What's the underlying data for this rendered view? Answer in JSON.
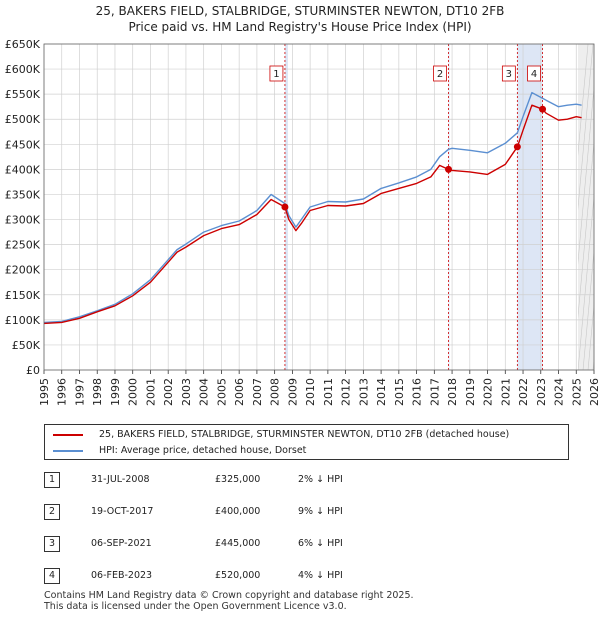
{
  "header": {
    "title_line1": "25, BAKERS FIELD, STALBRIDGE, STURMINSTER NEWTON, DT10 2FB",
    "title_line2": "Price paid vs. HM Land Registry's House Price Index (HPI)"
  },
  "colors": {
    "price_paid": "#cc0000",
    "hpi": "#5b8fd1",
    "shade": "#dde6f5",
    "marker_line": "#cc0000",
    "grid": "#d0d0d0"
  },
  "chart_data": {
    "type": "line",
    "x_range": [
      1995,
      2026
    ],
    "ylim": [
      0,
      650000
    ],
    "y_ticks": [
      0,
      50000,
      100000,
      150000,
      200000,
      250000,
      300000,
      350000,
      400000,
      450000,
      500000,
      550000,
      600000,
      650000
    ],
    "y_tick_labels": [
      "£0",
      "£50K",
      "£100K",
      "£150K",
      "£200K",
      "£250K",
      "£300K",
      "£350K",
      "£400K",
      "£450K",
      "£500K",
      "£550K",
      "£600K",
      "£650K"
    ],
    "x_ticks": [
      1995,
      1996,
      1997,
      1998,
      1999,
      2000,
      2001,
      2002,
      2003,
      2004,
      2005,
      2006,
      2007,
      2008,
      2009,
      2010,
      2011,
      2012,
      2013,
      2014,
      2015,
      2016,
      2017,
      2018,
      2019,
      2020,
      2021,
      2022,
      2023,
      2024,
      2025,
      2026
    ],
    "x_tick_labels": [
      "1995",
      "1996",
      "1997",
      "1998",
      "1999",
      "2000",
      "2001",
      "2002",
      "2003",
      "2004",
      "2005",
      "2006",
      "2007",
      "2008",
      "2009",
      "2010",
      "2011",
      "2012",
      "2013",
      "2014",
      "2015",
      "2016",
      "2017",
      "2018",
      "2019",
      "2020",
      "2021",
      "2022",
      "2023",
      "2024",
      "2025",
      "2026"
    ],
    "shaded_periods": [
      [
        2008.58,
        2008.75
      ],
      [
        2017.8,
        2017.85
      ],
      [
        2021.68,
        2023.1
      ]
    ],
    "projection_from": 2025.1,
    "series": [
      {
        "name": "25, BAKERS FIELD, STALBRIDGE, STURMINSTER NEWTON, DT10 2FB (detached house)",
        "x": [
          1995,
          1996,
          1997,
          1998,
          1999,
          2000,
          2001,
          2002,
          2002.5,
          2003,
          2004,
          2005,
          2006,
          2007,
          2007.8,
          2008.58,
          2008.8,
          2009.2,
          2009.5,
          2010,
          2011,
          2012,
          2013,
          2014,
          2015,
          2016,
          2016.8,
          2017.3,
          2017.8,
          2018,
          2019,
          2020,
          2021,
          2021.68,
          2022,
          2022.5,
          2023.1,
          2023.3,
          2024,
          2024.5,
          2025,
          2025.3
        ],
        "y": [
          93000,
          95000,
          103000,
          116000,
          128000,
          148000,
          175000,
          215000,
          235000,
          245000,
          268000,
          282000,
          290000,
          310000,
          340000,
          325000,
          300000,
          278000,
          292000,
          318000,
          328000,
          327000,
          332000,
          352000,
          362000,
          372000,
          385000,
          408000,
          400000,
          398000,
          395000,
          390000,
          410000,
          445000,
          478000,
          528000,
          520000,
          512000,
          498000,
          500000,
          505000,
          503000
        ]
      },
      {
        "name": "HPI: Average price, detached house, Dorset",
        "x": [
          1995,
          1996,
          1997,
          1998,
          1999,
          2000,
          2001,
          2002,
          2002.5,
          2003,
          2004,
          2005,
          2006,
          2007,
          2007.8,
          2008.58,
          2008.8,
          2009.2,
          2009.5,
          2010,
          2011,
          2012,
          2013,
          2014,
          2015,
          2016,
          2016.8,
          2017.3,
          2017.8,
          2018,
          2019,
          2020,
          2021,
          2021.68,
          2022,
          2022.5,
          2023.1,
          2023.3,
          2024,
          2024.5,
          2025,
          2025.3
        ],
        "y": [
          95000,
          97000,
          106000,
          118000,
          131000,
          152000,
          180000,
          220000,
          240000,
          251000,
          275000,
          288000,
          297000,
          318000,
          350000,
          332000,
          308000,
          285000,
          300000,
          325000,
          336000,
          335000,
          341000,
          362000,
          373000,
          385000,
          400000,
          425000,
          440000,
          442000,
          438000,
          433000,
          452000,
          473000,
          505000,
          553000,
          542000,
          538000,
          525000,
          528000,
          530000,
          528000
        ]
      }
    ],
    "sales": [
      {
        "label": "1",
        "x": 2008.58,
        "y": 325000
      },
      {
        "label": "2",
        "x": 2017.8,
        "y": 400000
      },
      {
        "label": "3",
        "x": 2021.68,
        "y": 445000
      },
      {
        "label": "4",
        "x": 2023.1,
        "y": 520000
      }
    ]
  },
  "legend": {
    "line1": "25, BAKERS FIELD, STALBRIDGE, STURMINSTER NEWTON, DT10 2FB (detached house)",
    "line2": "HPI: Average price, detached house, Dorset"
  },
  "sales_table": [
    {
      "num": "1",
      "date": "31-JUL-2008",
      "price": "£325,000",
      "hpi": "2% ↓ HPI"
    },
    {
      "num": "2",
      "date": "19-OCT-2017",
      "price": "£400,000",
      "hpi": "9% ↓ HPI"
    },
    {
      "num": "3",
      "date": "06-SEP-2021",
      "price": "£445,000",
      "hpi": "6% ↓ HPI"
    },
    {
      "num": "4",
      "date": "06-FEB-2023",
      "price": "£520,000",
      "hpi": "4% ↓ HPI"
    }
  ],
  "footer": {
    "line1": "Contains HM Land Registry data © Crown copyright and database right 2025.",
    "line2": "This data is licensed under the Open Government Licence v3.0."
  }
}
